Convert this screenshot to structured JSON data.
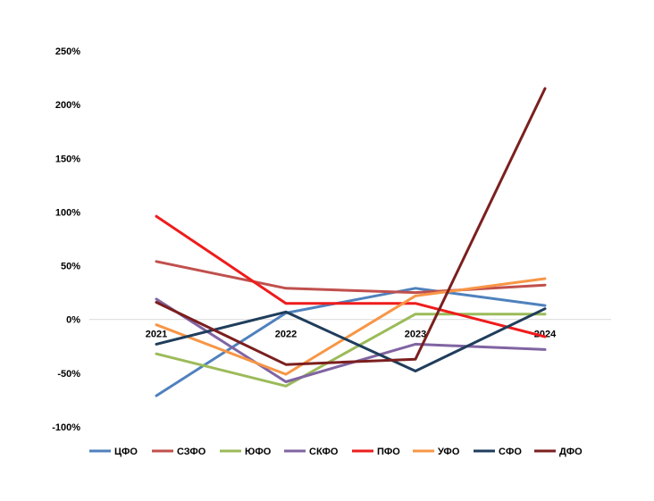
{
  "chart_data": {
    "type": "line",
    "title": "",
    "xlabel": "",
    "ylabel": "",
    "categories": [
      "2021",
      "2022",
      "2023",
      "2024"
    ],
    "yticks": [
      "250%",
      "200%",
      "150%",
      "100%",
      "50%",
      "0%",
      "-50%",
      "-100%"
    ],
    "ylim": [
      -100,
      250
    ],
    "grid": false,
    "legend_position": "bottom",
    "series": [
      {
        "name": "ЦФО",
        "color": "#4f81bd",
        "values": [
          -71,
          6,
          29,
          13
        ]
      },
      {
        "name": "СЗФО",
        "color": "#c0504d",
        "values": [
          54,
          29,
          25,
          32
        ]
      },
      {
        "name": "ЮФО",
        "color": "#9bbb59",
        "values": [
          -32,
          -62,
          5,
          5
        ]
      },
      {
        "name": "СКФО",
        "color": "#8064a2",
        "values": [
          19,
          -58,
          -23,
          -28
        ]
      },
      {
        "name": "ПФО",
        "color": "#ee1c1c",
        "values": [
          96,
          15,
          15,
          -16
        ]
      },
      {
        "name": "УФО",
        "color": "#f79646",
        "values": [
          -5,
          -51,
          22,
          38
        ]
      },
      {
        "name": "СФО",
        "color": "#1f3d5c",
        "values": [
          -23,
          7,
          -48,
          10
        ]
      },
      {
        "name": "ДФО",
        "color": "#7b1f1f",
        "values": [
          16,
          -42,
          -37,
          215
        ]
      }
    ]
  }
}
